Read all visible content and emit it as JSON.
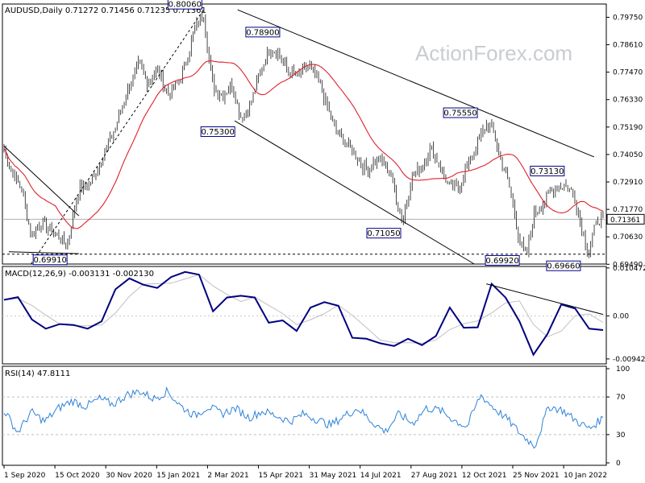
{
  "header": {
    "symbol": "AUDUSD,Daily",
    "ohlc": "0.71272 0.71456 0.71235 0.71361",
    "watermark": "ActionForex.com"
  },
  "chart_data": {
    "type": "line",
    "price_panel": {
      "ylim": [
        0.695,
        0.803
      ],
      "y_ticks": [
        "0.79750",
        "0.78610",
        "0.77470",
        "0.76330",
        "0.75190",
        "0.74050",
        "0.72910",
        "0.71770",
        "0.70630",
        "0.69490"
      ],
      "current_price": "0.71361",
      "reference_level": "0.69910",
      "annotations": [
        {
          "label": "0.80060",
          "value": 0.8006
        },
        {
          "label": "0.78900",
          "value": 0.789
        },
        {
          "label": "0.75300",
          "value": 0.753
        },
        {
          "label": "0.75550",
          "value": 0.7555
        },
        {
          "label": "0.73130",
          "value": 0.7313
        },
        {
          "label": "0.71050",
          "value": 0.7105
        },
        {
          "label": "0.69910",
          "value": 0.6991
        },
        {
          "label": "0.69920",
          "value": 0.6992
        },
        {
          "label": "0.69660",
          "value": 0.6966
        }
      ]
    },
    "macd_panel": {
      "title": "MACD(12,26,9) -0.003131 -0.002130",
      "ylim": [
        -0.0105,
        0.0108
      ],
      "y_ticks": [
        "0.010472",
        "0.00",
        "-0.009426"
      ],
      "series": [
        {
          "name": "MACD",
          "values": [
            0.0035,
            0.0041,
            -0.0008,
            -0.0028,
            -0.0018,
            -0.002,
            -0.0028,
            -0.0012,
            0.0058,
            0.0082,
            0.0068,
            0.0061,
            0.0085,
            0.0096,
            0.009,
            0.001,
            0.004,
            0.0044,
            0.004,
            -0.0015,
            -0.001,
            -0.0033,
            0.0018,
            0.003,
            0.0022,
            -0.0048,
            -0.005,
            -0.006,
            -0.0066,
            -0.005,
            -0.0064,
            -0.0044,
            0.0018,
            -0.0026,
            -0.0025,
            0.007,
            0.004,
            -0.0012,
            -0.0085,
            -0.004,
            0.0025,
            0.0016,
            -0.0028,
            -0.0031
          ]
        }
      ]
    },
    "rsi_panel": {
      "title": "RSI(14) 47.8111",
      "ylim": [
        0,
        100
      ],
      "y_ticks": [
        "100",
        "70",
        "30",
        "0"
      ],
      "levels": [
        70,
        30
      ],
      "series": [
        {
          "name": "RSI",
          "values": [
            56,
            32,
            54,
            44,
            58,
            66,
            60,
            68,
            62,
            72,
            76,
            68,
            76,
            60,
            50,
            60,
            52,
            58,
            48,
            55,
            50,
            44,
            52,
            46,
            40,
            50,
            58,
            44,
            33,
            52,
            42,
            58,
            56,
            46,
            38,
            72,
            58,
            46,
            30,
            18,
            60,
            56,
            45,
            36,
            48
          ]
        }
      ]
    },
    "x_ticks": [
      "1 Sep 2020",
      "15 Oct 2020",
      "30 Nov 2020",
      "15 Jan 2021",
      "2 Mar 2021",
      "15 Apr 2021",
      "31 May 2021",
      "14 Jul 2021",
      "27 Aug 2021",
      "12 Oct 2021",
      "25 Nov 2021",
      "10 Jan 2022"
    ],
    "colors": {
      "price": "#1a1a1a",
      "ma": "#e0202a",
      "macd": "#00007f",
      "signal": "#c0c0c0",
      "rsi": "#2f82d8",
      "label_border": "#00008b"
    }
  }
}
